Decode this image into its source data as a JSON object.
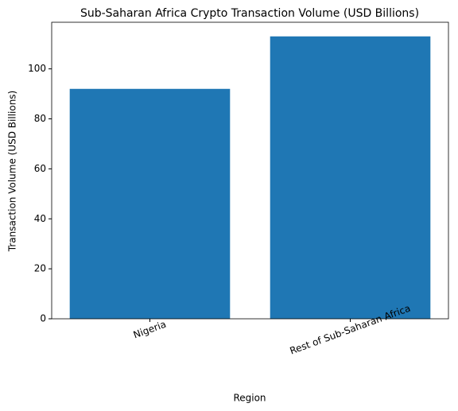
{
  "chart_data": {
    "type": "bar",
    "title": "Sub-Saharan Africa Crypto Transaction Volume (USD Billions)",
    "x_label": "Region",
    "y_label": "Transaction Volume (USD Billions)",
    "categories": [
      "Nigeria",
      "Rest of Sub-Saharan Africa"
    ],
    "values": [
      92,
      113
    ],
    "color": "#1f77b4",
    "ylim": [
      0,
      118.65
    ],
    "yticks": [
      0,
      20,
      40,
      60,
      80,
      100
    ],
    "grid": false
  }
}
